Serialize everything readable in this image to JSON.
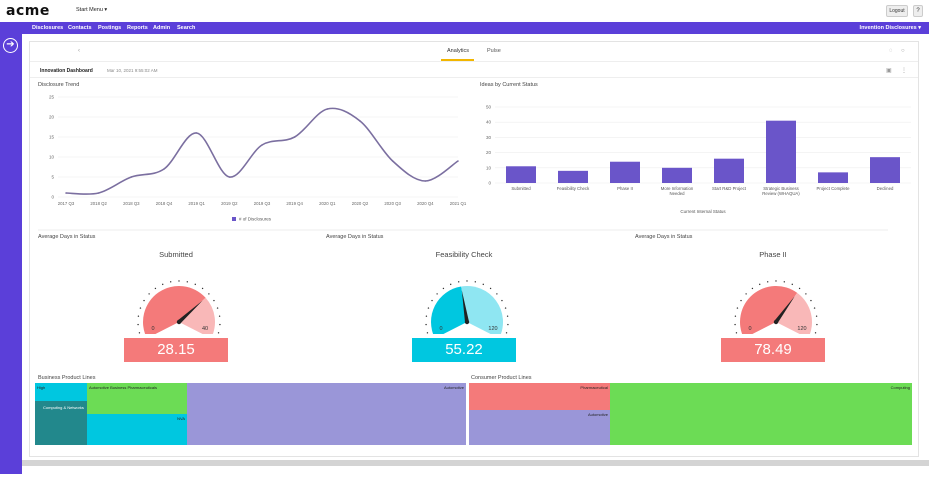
{
  "app": {
    "logo": "acme",
    "start_menu": "Start Menu ▾",
    "logout": "Logout",
    "help": "?"
  },
  "nav": {
    "items": [
      "Disclosures",
      "Contacts",
      "Postings",
      "Reports",
      "Admin",
      "Search"
    ],
    "right": "Invention Disclosures ▾"
  },
  "tabs": {
    "analytics": "Analytics",
    "pulse": "Pulse"
  },
  "dashboard": {
    "title": "Innovation Dashboard",
    "date": "Mar 10, 2021 9:55:02 AM"
  },
  "colors": {
    "accent": "#5b3fd9",
    "tab_underline": "#f2b600",
    "bar": "#6a55c9",
    "line": "#7b6fa0",
    "red": "#f47a7a",
    "cyan": "#00c7e0",
    "green": "#6cdc55",
    "teal": "#22888c",
    "lavender": "#9a96d8"
  },
  "chart_data": [
    {
      "type": "line",
      "title": "Disclosure Trend",
      "x": [
        "2017 Q3",
        "2018 Q2",
        "2018 Q3",
        "2018 Q4",
        "2019 Q1",
        "2019 Q2",
        "2019 Q3",
        "2019 Q4",
        "2020 Q1",
        "2020 Q2",
        "2020 Q3",
        "2020 Q4",
        "2021 Q1"
      ],
      "series": [
        {
          "name": "# of Disclosures",
          "values": [
            1,
            1,
            5,
            7,
            16,
            5,
            13,
            15,
            22,
            19,
            9,
            4,
            9
          ]
        }
      ],
      "ylim": [
        0,
        25
      ],
      "yticks": [
        0,
        5,
        10,
        15,
        20,
        25
      ],
      "legend": "bottom"
    },
    {
      "type": "bar",
      "title": "Ideas by Current Status",
      "xlabel": "Current Internal Status",
      "categories": [
        "Submitted",
        "Feasibility Check",
        "Phase II",
        "More Information Needed",
        "Start R&D Project",
        "Strategic Business Review (WHAQUA)",
        "Project Complete",
        "Declined"
      ],
      "values": [
        11,
        8,
        14,
        10,
        16,
        41,
        7,
        17
      ],
      "ylim": [
        0,
        50
      ],
      "yticks": [
        0,
        10,
        20,
        30,
        40,
        50
      ]
    }
  ],
  "gauges": [
    {
      "section": "Average Days in Status",
      "title": "Submitted",
      "min": "0",
      "max": "40",
      "value": 28.15,
      "display": "28.15",
      "color": "#f47a7a"
    },
    {
      "section": "Average Days in Status",
      "title": "Feasibility Check",
      "min": "0",
      "max": "120",
      "value": 55.22,
      "display": "55.22",
      "color": "#00c7e0"
    },
    {
      "section": "Average Days in Status",
      "title": "Phase II",
      "min": "0",
      "max": "120",
      "value": 78.49,
      "display": "78.49",
      "color": "#f47a7a"
    }
  ],
  "treemaps": {
    "business": {
      "title": "Business Product Lines",
      "labels": {
        "high": "High",
        "computing": "Computing & Networks",
        "abp": "Automotive Business Pharmaceuticals",
        "nva": "NVA",
        "automotive": "Automotive"
      }
    },
    "consumer": {
      "title": "Consumer Product Lines",
      "labels": {
        "pharma": "Pharmaceutical",
        "automotive": "Automotive",
        "computing": "Computing"
      }
    }
  }
}
